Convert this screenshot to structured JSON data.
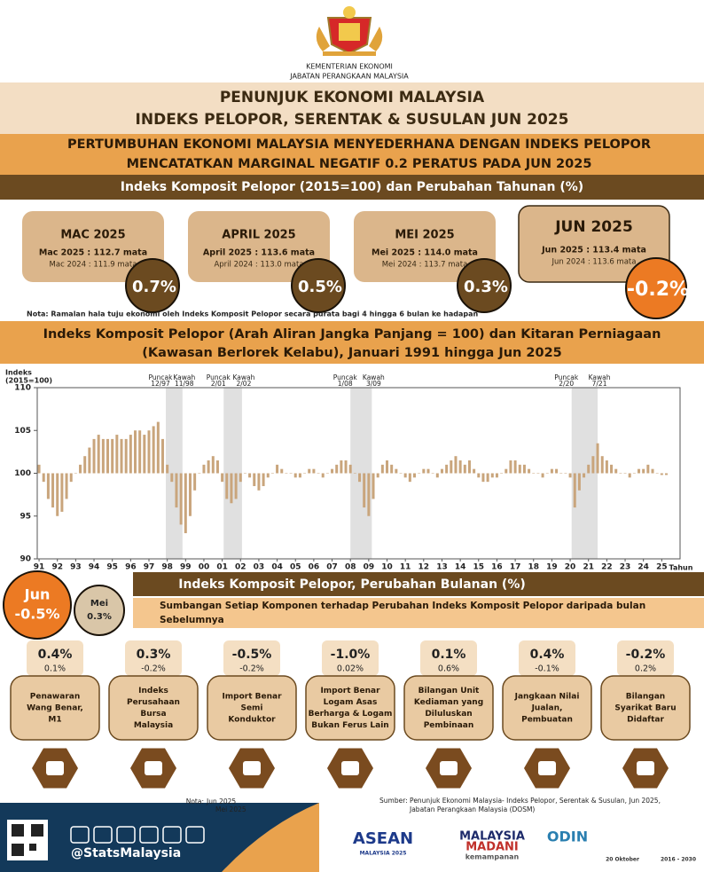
{
  "header": {
    "ministry": [
      "KEMENTERIAN EKONOMI",
      "JABATAN PERANGKAAN MALAYSIA"
    ],
    "title": [
      "PENUNJUK EKONOMI MALAYSIA",
      "INDEKS PELOPOR, SERENTAK & SUSULAN JUN 2025"
    ]
  },
  "headline": [
    "PERTUMBUHAN EKONOMI MALAYSIA MENYEDERHANA DENGAN INDEKS PELOPOR",
    "MENCATATKAN MARGINAL NEGATIF 0.2 PERATUS PADA JUN 2025"
  ],
  "annual": {
    "title": "Indeks Komposit Pelopor (2015=100) dan Perubahan Tahunan (%)",
    "cards": [
      {
        "month": "MAC 2025",
        "current": "Mac 2025 : 112.7 mata",
        "previous": "Mac 2024 : 111.9 mata",
        "change": "0.7%"
      },
      {
        "month": "APRIL 2025",
        "current": "April 2025 : 113.6 mata",
        "previous": "April 2024 : 113.0 mata",
        "change": "0.5%"
      },
      {
        "month": "MEI 2025",
        "current": "Mei 2025 : 114.0 mata",
        "previous": "Mei 2024 : 113.7 mata",
        "change": "0.3%"
      },
      {
        "month": "JUN 2025",
        "current": "Jun 2025 : 113.4 mata",
        "previous": "Jun 2024 : 113.6 mata",
        "change": "-0.2%"
      }
    ],
    "note": "Nota: Ramalan hala tuju ekonomi oleh Indeks Komposit Pelopor secara purata bagi 4 hingga 6 bulan ke hadapan"
  },
  "chart_data": {
    "type": "bar",
    "title": [
      "Indeks Komposit Pelopor (Arah Aliran Jangka Panjang = 100) dan Kitaran Perniagaan",
      "(Kawasan Berlorek Kelabu), Januari 1991 hingga Jun 2025"
    ],
    "y_label": [
      "Indeks",
      "(2015=100)"
    ],
    "x_label": "Tahun",
    "color": "#c9a57c",
    "base": 100,
    "x": [
      1991,
      1991.25,
      1991.5,
      1991.75,
      1992,
      1992.25,
      1992.5,
      1992.75,
      1993,
      1993.25,
      1993.5,
      1993.75,
      1994,
      1994.25,
      1994.5,
      1994.75,
      1995,
      1995.25,
      1995.5,
      1995.75,
      1996,
      1996.25,
      1996.5,
      1996.75,
      1997,
      1997.25,
      1997.5,
      1997.75,
      1998,
      1998.25,
      1998.5,
      1998.75,
      1999,
      1999.25,
      1999.5,
      1999.75,
      2000,
      2000.25,
      2000.5,
      2000.75,
      2001,
      2001.25,
      2001.5,
      2001.75,
      2002,
      2002.25,
      2002.5,
      2002.75,
      2003,
      2003.25,
      2003.5,
      2003.75,
      2004,
      2004.25,
      2004.5,
      2004.75,
      2005,
      2005.25,
      2005.5,
      2005.75,
      2006,
      2006.25,
      2006.5,
      2006.75,
      2007,
      2007.25,
      2007.5,
      2007.75,
      2008,
      2008.25,
      2008.5,
      2008.75,
      2009,
      2009.25,
      2009.5,
      2009.75,
      2010,
      2010.25,
      2010.5,
      2010.75,
      2011,
      2011.25,
      2011.5,
      2011.75,
      2012,
      2012.25,
      2012.5,
      2012.75,
      2013,
      2013.25,
      2013.5,
      2013.75,
      2014,
      2014.25,
      2014.5,
      2014.75,
      2015,
      2015.25,
      2015.5,
      2015.75,
      2016,
      2016.25,
      2016.5,
      2016.75,
      2017,
      2017.25,
      2017.5,
      2017.75,
      2018,
      2018.25,
      2018.5,
      2018.75,
      2019,
      2019.25,
      2019.5,
      2019.75,
      2020,
      2020.25,
      2020.5,
      2020.75,
      2021,
      2021.25,
      2021.5,
      2021.75,
      2022,
      2022.25,
      2022.5,
      2022.75,
      2023,
      2023.25,
      2023.5,
      2023.75,
      2024,
      2024.25,
      2024.5,
      2024.75,
      2025,
      2025.25
    ],
    "values": [
      101,
      99,
      97,
      96,
      95,
      95.5,
      97,
      99,
      100,
      101,
      102,
      103,
      104,
      104.5,
      104,
      104,
      104,
      104.5,
      104,
      104,
      104.5,
      105,
      105,
      104.5,
      105,
      105.5,
      106,
      104,
      101,
      99,
      96,
      94,
      93,
      95,
      98,
      100,
      101,
      101.5,
      102,
      101.5,
      99,
      97,
      96.5,
      97,
      99,
      100,
      99.5,
      98.5,
      98,
      98.5,
      99.5,
      100,
      101,
      100.5,
      100,
      100,
      99.5,
      99.5,
      100,
      100.5,
      100.5,
      100,
      99.5,
      100,
      100.5,
      101,
      101.5,
      101.5,
      101,
      100,
      99,
      96,
      95,
      97,
      99.5,
      101,
      101.5,
      101,
      100.5,
      100,
      99.5,
      99,
      99.5,
      100,
      100.5,
      100.5,
      100,
      99.5,
      100.5,
      101,
      101.5,
      102,
      101.5,
      101,
      101.5,
      100.5,
      99.5,
      99,
      99,
      99.5,
      99.5,
      100,
      100.5,
      101.5,
      101.5,
      101,
      101,
      100.5,
      100,
      100,
      99.5,
      100,
      100.5,
      100.5,
      100,
      100,
      99.5,
      96,
      98,
      99.5,
      101,
      102,
      103.5,
      102,
      101.5,
      101,
      100.5,
      100,
      100,
      99.5,
      100,
      100.5,
      100.5,
      101,
      100.5,
      100,
      99.8,
      99.8
    ],
    "ylim": [
      90,
      110
    ],
    "yticks": [
      90,
      95,
      100,
      105,
      110
    ],
    "xlim": [
      1990.9,
      2026
    ],
    "xticks": [
      {
        "value": 1991,
        "label": "91"
      },
      {
        "value": 1992,
        "label": "92"
      },
      {
        "value": 1993,
        "label": "93"
      },
      {
        "value": 1994,
        "label": "94"
      },
      {
        "value": 1995,
        "label": "95"
      },
      {
        "value": 1996,
        "label": "96"
      },
      {
        "value": 1997,
        "label": "97"
      },
      {
        "value": 1998,
        "label": "98"
      },
      {
        "value": 1999,
        "label": "99"
      },
      {
        "value": 2000,
        "label": "00"
      },
      {
        "value": 2001,
        "label": "01"
      },
      {
        "value": 2002,
        "label": "02"
      },
      {
        "value": 2003,
        "label": "03"
      },
      {
        "value": 2004,
        "label": "04"
      },
      {
        "value": 2005,
        "label": "05"
      },
      {
        "value": 2006,
        "label": "06"
      },
      {
        "value": 2007,
        "label": "07"
      },
      {
        "value": 2008,
        "label": "08"
      },
      {
        "value": 2009,
        "label": "09"
      },
      {
        "value": 2010,
        "label": "10"
      },
      {
        "value": 2011,
        "label": "11"
      },
      {
        "value": 2012,
        "label": "12"
      },
      {
        "value": 2013,
        "label": "13"
      },
      {
        "value": 2014,
        "label": "14"
      },
      {
        "value": 2015,
        "label": "15"
      },
      {
        "value": 2016,
        "label": "16"
      },
      {
        "value": 2017,
        "label": "17"
      },
      {
        "value": 2018,
        "label": "18"
      },
      {
        "value": 2019,
        "label": "19"
      },
      {
        "value": 2020,
        "label": "20"
      },
      {
        "value": 2021,
        "label": "21"
      },
      {
        "value": 2022,
        "label": "22"
      },
      {
        "value": 2023,
        "label": "23"
      },
      {
        "value": 2024,
        "label": "24"
      },
      {
        "value": 2025,
        "label": "25"
      }
    ],
    "shaded": [
      {
        "peak_label": "Puncak",
        "peak": "12/97",
        "trough_label": "Kawah",
        "trough": "11/98",
        "start": 1997.92,
        "end": 1998.83
      },
      {
        "peak_label": "Puncak",
        "peak": "2/01",
        "trough_label": "Kawah",
        "trough": "2/02",
        "start": 2001.08,
        "end": 2002.08
      },
      {
        "peak_label": "Puncak",
        "peak": "1/08",
        "trough_label": "Kawah",
        "trough": "3/09",
        "start": 2008,
        "end": 2009.17
      },
      {
        "peak_label": "Puncak",
        "peak": "2/20",
        "trough_label": "Kawah",
        "trough": "7/21",
        "start": 2020.08,
        "end": 2021.5
      }
    ]
  },
  "monthly": {
    "title": "Indeks Komposit Pelopor, Perubahan Bulanan (%)",
    "current": {
      "month": "Jun",
      "change": "-0.5%"
    },
    "previous": {
      "month": "Mei",
      "change": "0.3%"
    },
    "subtitle": [
      "Sumbangan Setiap Komponen terhadap Perubahan Indeks Komposit Pelopor daripada bulan",
      "Sebelumnya"
    ],
    "components": [
      {
        "current": "0.4%",
        "previous": "0.1%",
        "name": [
          "Penawaran",
          "Wang Benar,",
          "M1"
        ]
      },
      {
        "current": "0.3%",
        "previous": "-0.2%",
        "name": [
          "Indeks",
          "Perusahaan",
          "Bursa",
          "Malaysia"
        ]
      },
      {
        "current": "-0.5%",
        "previous": "-0.2%",
        "name": [
          "Import Benar",
          "Semi",
          "Konduktor"
        ]
      },
      {
        "current": "-1.0%",
        "previous": "0.02%",
        "name": [
          "Import Benar",
          "Logam Asas",
          "Berharga & Logam",
          "Bukan Ferus Lain"
        ]
      },
      {
        "current": "0.1%",
        "previous": "0.6%",
        "name": [
          "Bilangan Unit",
          "Kediaman yang",
          "Diluluskan",
          "Pembinaan"
        ]
      },
      {
        "current": "0.4%",
        "previous": "-0.1%",
        "name": [
          "Jangkaan Nilai",
          "Jualan,",
          "Pembuatan"
        ]
      },
      {
        "current": "-0.2%",
        "previous": "0.2%",
        "name": [
          "Bilangan",
          "Syarikat Baru",
          "Didaftar"
        ]
      }
    ]
  },
  "footer": {
    "note_label": "Nota:",
    "note": [
      "Jun 2025",
      "Mei 2025"
    ],
    "source": [
      "Sumber:  Penunjuk Ekonomi Malaysia- Indeks Pelopor, Serentak & Susulan, Jun 2025,",
      "Jabatan Perangkaan Malaysia (DOSM)"
    ],
    "handle": "@StatsMalaysia",
    "logos": [
      "ASEAN",
      "MALAYSIA 2025",
      "MALAYSIA",
      "MADANI",
      "kemampanan",
      "ODIN",
      "20 Oktober",
      "2016 - 2030"
    ]
  }
}
